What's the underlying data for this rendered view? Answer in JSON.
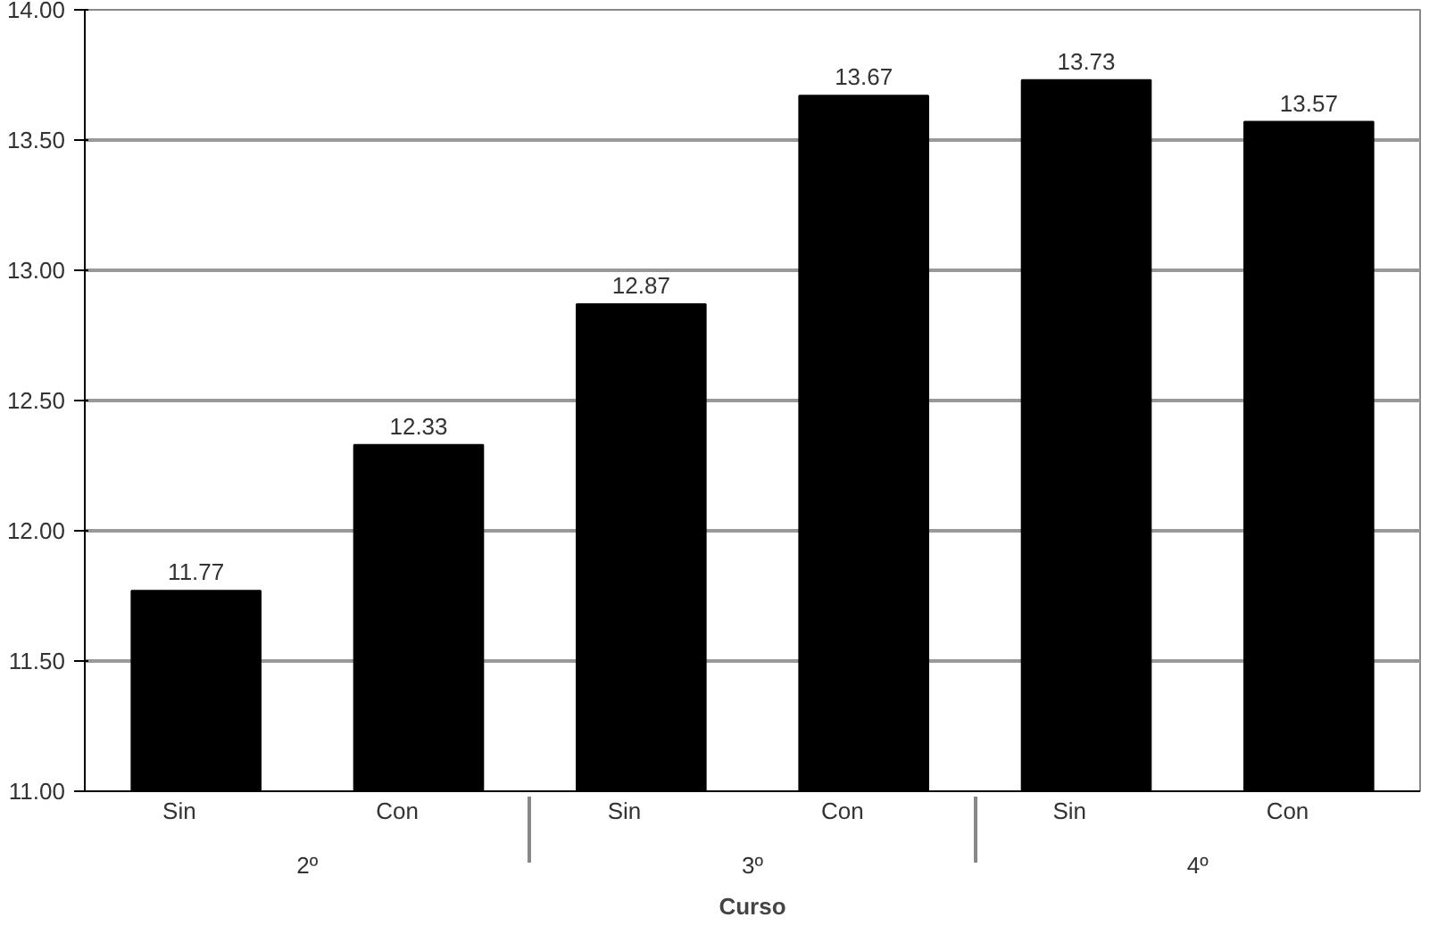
{
  "chart_data": {
    "type": "bar",
    "xlabel": "Curso",
    "categories": [
      "Sin",
      "Con",
      "Sin",
      "Con",
      "Sin",
      "Con"
    ],
    "annotations": [
      "2º",
      "3º",
      "4º"
    ],
    "values": [
      11.77,
      12.33,
      12.87,
      13.67,
      13.73,
      13.57
    ],
    "color": "#000000",
    "ylim": [
      11,
      14
    ],
    "yticks": [
      {
        "value": 11,
        "label": "11.00"
      },
      {
        "value": 11.5,
        "label": "11.50"
      },
      {
        "value": 12,
        "label": "12.00"
      },
      {
        "value": 12.5,
        "label": "12.50"
      },
      {
        "value": 13,
        "label": "13.00"
      },
      {
        "value": 13.5,
        "label": "13.50"
      },
      {
        "value": 14,
        "label": "14.00"
      }
    ],
    "grid": "y",
    "data_labels": true
  }
}
